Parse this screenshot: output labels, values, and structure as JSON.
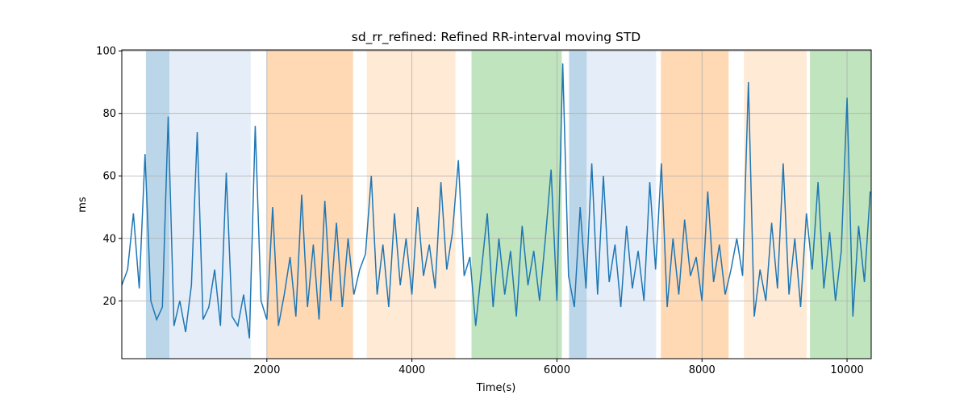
{
  "chart_data": {
    "type": "line",
    "title": "sd_rr_refined: Refined RR-interval moving STD",
    "xlabel": "Time(s)",
    "ylabel": "ms",
    "xlim": [
      0,
      10333
    ],
    "ylim": [
      1.5,
      100.3
    ],
    "xticks": [
      2000,
      4000,
      6000,
      8000,
      10000
    ],
    "yticks": [
      20,
      40,
      60,
      80,
      100
    ],
    "grid": true,
    "spans": [
      {
        "start": 333,
        "end": 656,
        "color": "#bbd6e8"
      },
      {
        "start": 656,
        "end": 1778,
        "color": "#e5eef8"
      },
      {
        "start": 2000,
        "end": 3189,
        "color": "#ffd8b4"
      },
      {
        "start": 3378,
        "end": 4600,
        "color": "#ffead6"
      },
      {
        "start": 4822,
        "end": 6067,
        "color": "#c0e4bd"
      },
      {
        "start": 6167,
        "end": 6411,
        "color": "#bbd6e8"
      },
      {
        "start": 6411,
        "end": 7367,
        "color": "#e5eef8"
      },
      {
        "start": 7433,
        "end": 8367,
        "color": "#ffd8b4"
      },
      {
        "start": 8578,
        "end": 9444,
        "color": "#ffead6"
      },
      {
        "start": 9489,
        "end": 10333,
        "color": "#c0e4bd"
      }
    ],
    "x": [
      0,
      80,
      160,
      240,
      320,
      400,
      480,
      560,
      640,
      720,
      800,
      880,
      960,
      1040,
      1120,
      1200,
      1280,
      1360,
      1440,
      1520,
      1600,
      1680,
      1760,
      1840,
      1920,
      2000,
      2080,
      2160,
      2240,
      2320,
      2400,
      2480,
      2560,
      2640,
      2720,
      2800,
      2880,
      2960,
      3040,
      3120,
      3200,
      3280,
      3360,
      3440,
      3520,
      3600,
      3680,
      3760,
      3840,
      3920,
      4000,
      4080,
      4160,
      4240,
      4320,
      4400,
      4480,
      4560,
      4640,
      4720,
      4800,
      4880,
      4960,
      5040,
      5120,
      5200,
      5280,
      5360,
      5440,
      5520,
      5600,
      5680,
      5760,
      5840,
      5920,
      6000,
      6080,
      6160,
      6240,
      6320,
      6400,
      6480,
      6560,
      6640,
      6720,
      6800,
      6880,
      6960,
      7040,
      7120,
      7200,
      7280,
      7360,
      7440,
      7520,
      7600,
      7680,
      7760,
      7840,
      7920,
      8000,
      8080,
      8160,
      8240,
      8320,
      8400,
      8480,
      8560,
      8640,
      8720,
      8800,
      8880,
      8960,
      9040,
      9120,
      9200,
      9280,
      9360,
      9440,
      9520,
      9600,
      9680,
      9760,
      9840,
      9920,
      10000,
      10080,
      10160,
      10240,
      10320
    ],
    "series": [
      {
        "name": "sd_rr_refined",
        "color": "#1f77b4",
        "values": [
          25,
          30,
          48,
          24,
          67,
          20,
          14,
          18,
          79,
          12,
          20,
          10,
          25,
          74,
          14,
          18,
          30,
          12,
          61,
          15,
          12,
          22,
          8,
          76,
          20,
          14,
          50,
          12,
          22,
          34,
          15,
          54,
          18,
          38,
          14,
          52,
          20,
          45,
          18,
          40,
          22,
          30,
          35,
          60,
          22,
          38,
          18,
          48,
          25,
          40,
          22,
          50,
          28,
          38,
          24,
          58,
          30,
          42,
          65,
          28,
          34,
          12,
          30,
          48,
          18,
          40,
          22,
          36,
          15,
          44,
          25,
          36,
          20,
          40,
          62,
          20,
          96,
          28,
          18,
          50,
          24,
          64,
          22,
          60,
          26,
          38,
          18,
          44,
          24,
          36,
          20,
          58,
          30,
          64,
          18,
          40,
          22,
          46,
          28,
          34,
          20,
          55,
          26,
          38,
          22,
          30,
          40,
          28,
          90,
          15,
          30,
          20,
          45,
          24,
          64,
          22,
          40,
          18,
          48,
          30,
          58,
          24,
          42,
          20,
          36,
          85,
          15,
          44,
          26,
          55
        ]
      }
    ]
  }
}
